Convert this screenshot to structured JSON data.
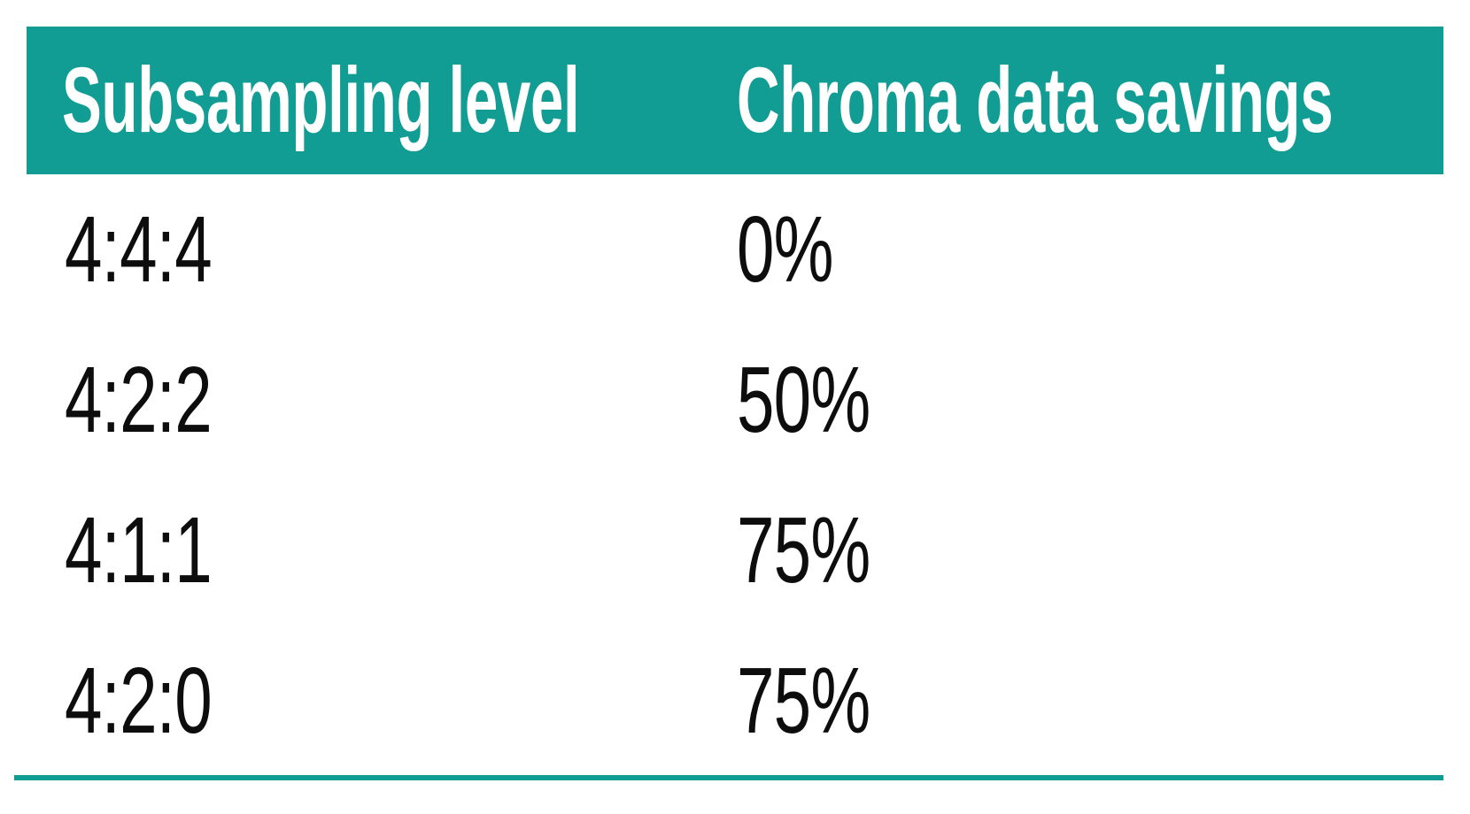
{
  "figure": {
    "columns": [
      "Subsampling level",
      "Chroma data savings"
    ],
    "rows": [
      {
        "level": "4:4:4",
        "savings": "0%"
      },
      {
        "level": "4:2:2",
        "savings": "50%"
      },
      {
        "level": "4:1:1",
        "savings": "75%"
      },
      {
        "level": "4:2:0",
        "savings": "75%"
      }
    ]
  },
  "colors": {
    "header_bg": "#119c94",
    "header_text": "#ffffff",
    "body_text": "#0d0d0d",
    "bottom_rule": "#119c94",
    "background": "#ffffff"
  },
  "chart_data": {
    "type": "table",
    "columns": [
      "Subsampling level",
      "Chroma data savings"
    ],
    "rows": [
      [
        "4:4:4",
        "0%"
      ],
      [
        "4:2:2",
        "50%"
      ],
      [
        "4:1:1",
        "75%"
      ],
      [
        "4:2:0",
        "75%"
      ]
    ],
    "layout_hints": {
      "header_style": "teal background, white bold condensed text",
      "body_style": "black condensed text on white, no inner gridlines",
      "footer": "thin teal horizontal rule below last row"
    }
  }
}
